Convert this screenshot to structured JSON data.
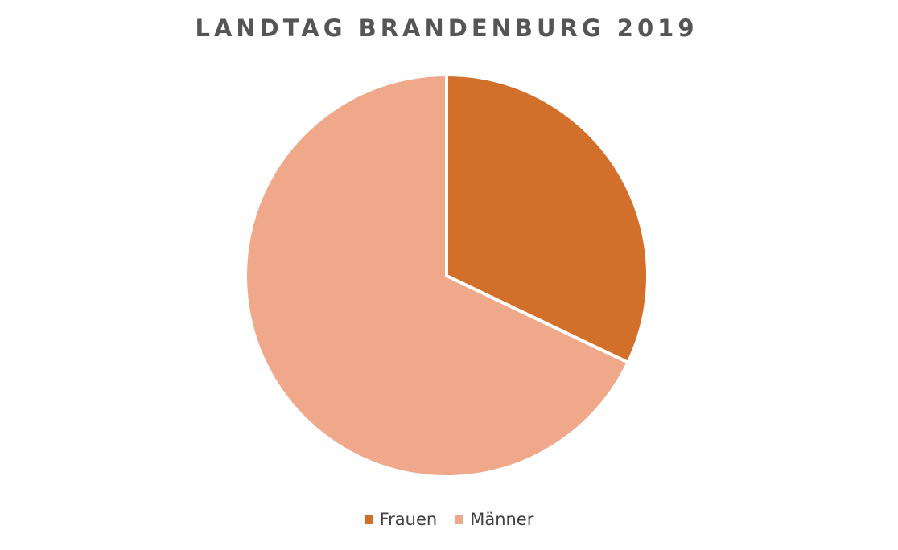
{
  "chart_data": {
    "type": "pie",
    "title": "LANDTAG BRANDENBURG 2019",
    "categories": [
      "Frauen",
      "Männer"
    ],
    "values": [
      32.1,
      67.9
    ],
    "colors": [
      "#d2702b",
      "#f0a88b"
    ],
    "legend_position": "bottom"
  }
}
